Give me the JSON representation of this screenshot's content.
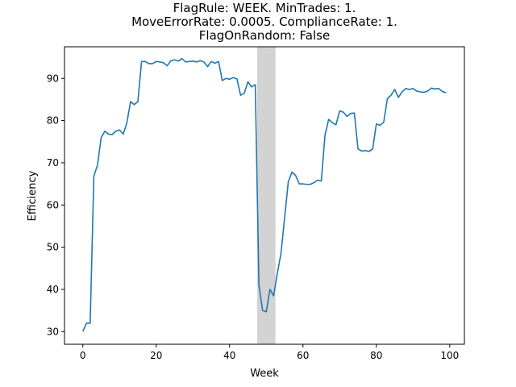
{
  "chart_data": {
    "type": "line",
    "title_lines": [
      "FlagRule: WEEK. MinTrades: 1.",
      "MoveErrorRate: 0.0005. ComplianceRate: 1.",
      "FlagOnRandom: False"
    ],
    "xlabel": "Week",
    "ylabel": "Efficiency",
    "xlim": [
      -5,
      104
    ],
    "ylim": [
      27,
      97.5
    ],
    "xticks": [
      0,
      20,
      40,
      60,
      80,
      100
    ],
    "yticks": [
      30,
      40,
      50,
      60,
      70,
      80,
      90
    ],
    "grid": false,
    "line_color": "#1f77b4",
    "shaded_region": {
      "x_start": 47.5,
      "x_end": 52.5,
      "color": "#d3d3d3"
    },
    "series": [
      {
        "x": [
          0,
          1,
          2,
          3,
          4,
          5,
          6,
          7,
          8,
          9,
          10,
          11,
          12,
          13,
          14,
          15,
          16,
          17,
          18,
          19,
          20,
          21,
          22,
          23,
          24,
          25,
          26,
          27,
          28,
          29,
          30,
          31,
          32,
          33,
          34,
          35,
          36,
          37,
          38,
          39,
          40,
          41,
          42,
          43,
          44,
          45,
          46,
          47,
          48,
          49,
          50,
          51,
          52,
          53,
          54,
          55,
          56,
          57,
          58,
          59,
          60,
          61,
          62,
          63,
          64,
          65,
          66,
          67,
          68,
          69,
          70,
          71,
          72,
          73,
          74,
          75,
          76,
          77,
          78,
          79,
          80,
          81,
          82,
          83,
          84,
          85,
          86,
          87,
          88,
          89,
          90,
          91,
          92,
          93,
          94,
          95,
          96,
          97,
          98,
          99
        ],
        "values": [
          30,
          32,
          32,
          66.8,
          69.5,
          76,
          77.5,
          76.8,
          76.7,
          77.5,
          77.8,
          76.8,
          79.5,
          84.5,
          83.8,
          84.5,
          94,
          94,
          93.5,
          93.5,
          94,
          93.9,
          93.7,
          93,
          94.2,
          94.4,
          94.1,
          94.7,
          93.9,
          94,
          94.1,
          93.9,
          94.2,
          93.9,
          92.8,
          94,
          93.6,
          94,
          89.5,
          90,
          89.8,
          90.2,
          89.9,
          86,
          86.5,
          89.2,
          88,
          88.5,
          41,
          35,
          34.7,
          40,
          38.5,
          43.8,
          48.5,
          57,
          65.5,
          67.8,
          67,
          65,
          65,
          64.9,
          64.9,
          65.3,
          65.9,
          65.7,
          76.5,
          80.3,
          79.5,
          79,
          82.3,
          82,
          81,
          81.7,
          81.8,
          73.3,
          72.8,
          72.9,
          72.7,
          73.3,
          79.2,
          78.9,
          79.6,
          85.2,
          86,
          87.4,
          85.5,
          86.8,
          87.6,
          87.4,
          87.6,
          87,
          86.8,
          86.7,
          87,
          87.7,
          87.5,
          87.6,
          86.9,
          86.6
        ]
      }
    ]
  }
}
